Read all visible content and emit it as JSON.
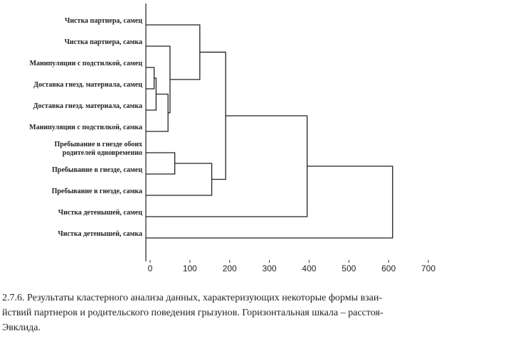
{
  "chart_data": {
    "type": "dendrogram",
    "labels": [
      [
        "Чистка партнера, самец"
      ],
      [
        "Чистка партнера, самка"
      ],
      [
        "Манипуляции с подстилкой, самец"
      ],
      [
        "Доставка гнезд. материала, самец"
      ],
      [
        "Доставка гнезд. материала, самка"
      ],
      [
        "Манипуляции с подстилкой, самка"
      ],
      [
        "Пребывание в гнезде обоих",
        "родителей одновременно"
      ],
      [
        "Пребывание в гнезде, самец"
      ],
      [
        "Пребывание в гнезде, самка"
      ],
      [
        "Чистка детенышей, самец"
      ],
      [
        "Чистка детенышей, самка"
      ]
    ],
    "merges": [
      {
        "left": 2,
        "right": 3,
        "height": 10
      },
      {
        "left": 11,
        "right": 4,
        "height": 15
      },
      {
        "left": 12,
        "right": 5,
        "height": 45
      },
      {
        "left": 1,
        "right": 13,
        "height": 50
      },
      {
        "left": 0,
        "right": 14,
        "height": 125
      },
      {
        "left": 6,
        "right": 7,
        "height": 62
      },
      {
        "left": 16,
        "right": 8,
        "height": 155
      },
      {
        "left": 15,
        "right": 17,
        "height": 190
      },
      {
        "left": 18,
        "right": 9,
        "height": 395
      },
      {
        "left": 19,
        "right": 10,
        "height": 610
      }
    ],
    "xlim": [
      0,
      700
    ],
    "xticks": [
      0,
      100,
      200,
      300,
      400,
      500,
      600,
      700
    ],
    "caption": [
      "2.7.6. Результаты кластерного анализа данных, характеризующих некоторые формы взаи-",
      "йствий партнеров и родительского поведения грызунов. Горизонтальная шкала – расстоя-",
      "Эвклида."
    ]
  }
}
